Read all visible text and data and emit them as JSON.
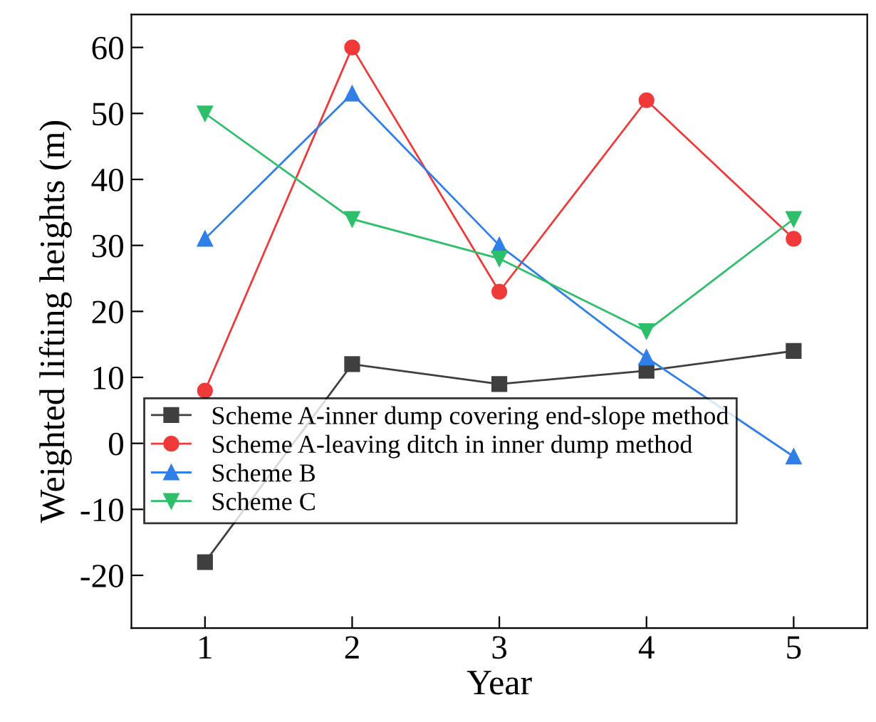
{
  "chart_data": {
    "type": "line",
    "xlabel": "Year",
    "ylabel": "Weighted lifting heights (m)",
    "x": [
      1,
      2,
      3,
      4,
      5
    ],
    "xlim": [
      0.5,
      5.5
    ],
    "xticks": [
      1,
      2,
      3,
      4,
      5
    ],
    "ylim": [
      -28,
      65
    ],
    "yticks": [
      -20,
      -10,
      0,
      10,
      20,
      30,
      40,
      50,
      60
    ],
    "grid": false,
    "legend": "bottom left",
    "line_style": "solid",
    "series": [
      {
        "name": "Scheme A-inner dump covering end-slope method",
        "color": "#3f3f3f",
        "marker": "square",
        "values": [
          -18,
          12,
          9,
          11,
          14
        ]
      },
      {
        "name": "Scheme A-leaving ditch in inner dump method",
        "color": "#f03a3a",
        "marker": "circle",
        "values": [
          8,
          60,
          23,
          52,
          31
        ]
      },
      {
        "name": "Scheme B",
        "color": "#2f7fe8",
        "marker": "triangle",
        "values": [
          31,
          53,
          30,
          13,
          -2
        ]
      },
      {
        "name": "Scheme C",
        "color": "#2ebf6a",
        "marker": "triangle_down",
        "values": [
          50,
          34,
          28,
          17,
          34
        ]
      }
    ]
  }
}
